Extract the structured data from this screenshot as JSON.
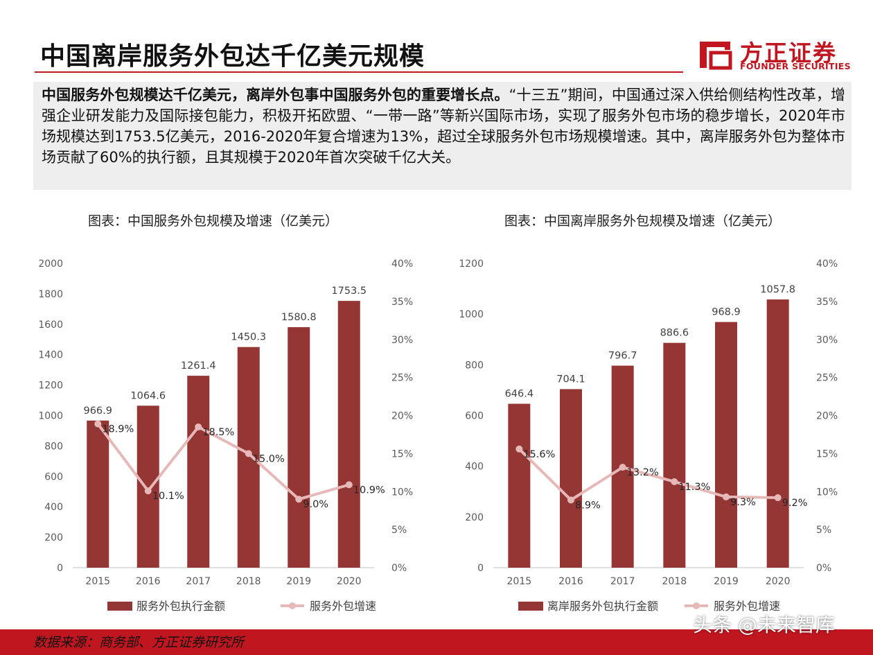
{
  "header": {
    "title": "中国离岸服务外包达千亿美元规模",
    "logo_cn": "方正证券",
    "logo_en": "FOUNDER SECURITIES",
    "accent_color": "#c0161f"
  },
  "summary": {
    "bold": "中国服务外包规模达千亿美元，离岸外包事中国服务外包的重要增长点。",
    "text": "“十三五”期间，中国通过深入供给侧结构性改革，增强企业研发能力及国际接包能力，积极开拓欧盟、“一带一路”等新兴国际市场，实现了服务外包市场的稳步增长，2020年市场规模达到1753.5亿美元，2016-2020年复合增速为13%，超过全球服务外包市场规模增速。其中，离岸服务外包为整体市场贡献了60%的执行额，且其规模于2020年首次突破千亿大关。"
  },
  "chart_data": [
    {
      "type": "bar",
      "title": "图表：中国服务外包规模及增速（亿美元）",
      "categories": [
        "2015",
        "2016",
        "2017",
        "2018",
        "2019",
        "2020"
      ],
      "ylim": [
        0,
        2000
      ],
      "yticks": [
        "0",
        "200",
        "400",
        "600",
        "800",
        "1000",
        "1200",
        "1400",
        "1600",
        "1800",
        "2000"
      ],
      "y2lim": [
        0,
        40
      ],
      "y2ticks": [
        "0%",
        "5%",
        "10%",
        "15%",
        "20%",
        "25%",
        "30%",
        "35%",
        "40%"
      ],
      "series": [
        {
          "name": "服务外包执行金额",
          "type": "bar",
          "axis": "left",
          "color": "#943634",
          "values": [
            966.9,
            1064.6,
            1261.4,
            1450.3,
            1580.8,
            1753.5
          ],
          "labels": [
            "966.9",
            "1064.6",
            "1261.4",
            "1450.3",
            "1580.8",
            "1753.5"
          ]
        },
        {
          "name": "服务外包增速",
          "type": "line",
          "axis": "right",
          "color": "#e6b9b8",
          "values": [
            18.9,
            10.1,
            18.5,
            15.0,
            9.0,
            10.9
          ],
          "labels": [
            "18.9%",
            "10.1%",
            "18.5%",
            "15.0%",
            "9.0%",
            "10.9%"
          ]
        }
      ],
      "grid": false,
      "legend": "bottom"
    },
    {
      "type": "bar",
      "title": "图表：中国离岸服务外包规模及增速（亿美元）",
      "categories": [
        "2015",
        "2016",
        "2017",
        "2018",
        "2019",
        "2020"
      ],
      "ylim": [
        0,
        1200
      ],
      "yticks": [
        "0",
        "200",
        "400",
        "600",
        "800",
        "1000",
        "1200"
      ],
      "y2lim": [
        0,
        40
      ],
      "y2ticks": [
        "0%",
        "5%",
        "10%",
        "15%",
        "20%",
        "25%",
        "30%",
        "35%",
        "40%"
      ],
      "series": [
        {
          "name": "离岸服务外包执行金额",
          "type": "bar",
          "axis": "left",
          "color": "#943634",
          "values": [
            646.4,
            704.1,
            796.7,
            886.6,
            968.9,
            1057.8
          ],
          "labels": [
            "646.4",
            "704.1",
            "796.7",
            "886.6",
            "968.9",
            "1057.8"
          ]
        },
        {
          "name": "服务外包增速",
          "type": "line",
          "axis": "right",
          "color": "#e6b9b8",
          "values": [
            15.6,
            8.9,
            13.2,
            11.3,
            9.3,
            9.2
          ],
          "labels": [
            "15.6%",
            "8.9%",
            "13.2%",
            "11.3%",
            "9.3%",
            "9.2%"
          ]
        }
      ],
      "grid": false,
      "legend": "bottom"
    }
  ],
  "footer": {
    "source": "数据来源：商务部、方正证券研究所",
    "watermark": "头条 @未来智库"
  }
}
